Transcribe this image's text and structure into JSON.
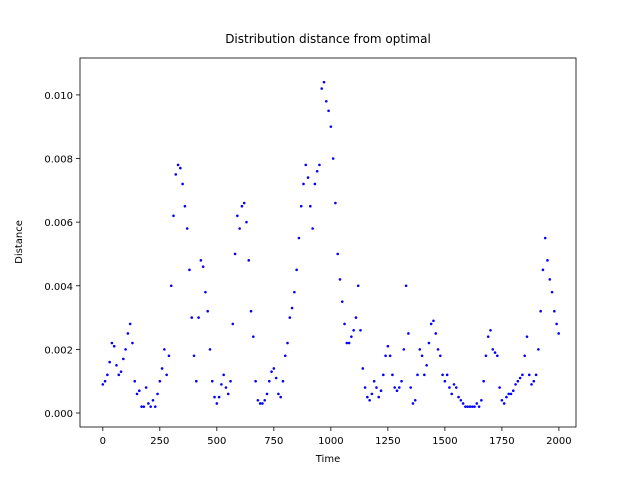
{
  "chart_data": {
    "type": "scatter",
    "title": "Distribution distance from optimal",
    "x_label": "Time",
    "y_label": "Distance",
    "color": "#0000ff",
    "x": [
      0,
      10,
      20,
      30,
      40,
      50,
      60,
      70,
      80,
      90,
      100,
      110,
      120,
      130,
      140,
      150,
      160,
      170,
      180,
      190,
      200,
      210,
      220,
      230,
      240,
      250,
      260,
      270,
      280,
      290,
      300,
      310,
      320,
      330,
      340,
      350,
      360,
      370,
      380,
      390,
      400,
      410,
      420,
      430,
      440,
      450,
      460,
      470,
      480,
      490,
      500,
      510,
      520,
      530,
      540,
      550,
      560,
      570,
      580,
      590,
      600,
      610,
      620,
      630,
      640,
      650,
      660,
      670,
      680,
      690,
      700,
      710,
      720,
      730,
      740,
      750,
      760,
      770,
      780,
      790,
      800,
      810,
      820,
      830,
      840,
      850,
      860,
      870,
      880,
      890,
      900,
      910,
      920,
      930,
      940,
      950,
      960,
      970,
      980,
      990,
      1000,
      1010,
      1020,
      1030,
      1040,
      1050,
      1060,
      1070,
      1080,
      1090,
      1100,
      1110,
      1120,
      1130,
      1140,
      1150,
      1160,
      1170,
      1180,
      1190,
      1200,
      1210,
      1220,
      1230,
      1240,
      1250,
      1260,
      1270,
      1280,
      1290,
      1300,
      1310,
      1320,
      1330,
      1340,
      1350,
      1360,
      1370,
      1380,
      1390,
      1400,
      1410,
      1420,
      1430,
      1440,
      1450,
      1460,
      1470,
      1480,
      1490,
      1500,
      1510,
      1520,
      1530,
      1540,
      1550,
      1560,
      1570,
      1580,
      1590,
      1600,
      1610,
      1620,
      1630,
      1640,
      1650,
      1660,
      1670,
      1680,
      1690,
      1700,
      1710,
      1720,
      1730,
      1740,
      1750,
      1760,
      1770,
      1780,
      1790,
      1800,
      1810,
      1820,
      1830,
      1840,
      1850,
      1860,
      1870,
      1880,
      1890,
      1900,
      1910,
      1920,
      1930,
      1940,
      1950,
      1960,
      1970,
      1980,
      1990,
      1999
    ],
    "values": [
      0.0009,
      0.001,
      0.0012,
      0.0016,
      0.0022,
      0.0021,
      0.0015,
      0.0012,
      0.0013,
      0.0017,
      0.002,
      0.0025,
      0.0028,
      0.0022,
      0.001,
      0.0006,
      0.0007,
      0.0002,
      0.0002,
      0.0008,
      0.0003,
      0.0002,
      0.0004,
      0.0002,
      0.0006,
      0.001,
      0.0014,
      0.002,
      0.0012,
      0.0018,
      0.004,
      0.0062,
      0.0075,
      0.0078,
      0.0077,
      0.0072,
      0.0065,
      0.0058,
      0.0045,
      0.003,
      0.0018,
      0.001,
      0.003,
      0.0048,
      0.0046,
      0.0038,
      0.0032,
      0.002,
      0.001,
      0.0005,
      0.0003,
      0.0005,
      0.0009,
      0.0012,
      0.0008,
      0.0006,
      0.001,
      0.0028,
      0.005,
      0.0062,
      0.0058,
      0.0065,
      0.0066,
      0.006,
      0.0048,
      0.0032,
      0.0024,
      0.001,
      0.0004,
      0.0003,
      0.0003,
      0.0004,
      0.0006,
      0.001,
      0.0013,
      0.0014,
      0.0011,
      0.0006,
      0.0005,
      0.001,
      0.0018,
      0.0022,
      0.003,
      0.0033,
      0.0038,
      0.0045,
      0.0055,
      0.0065,
      0.0072,
      0.0078,
      0.0074,
      0.0065,
      0.0058,
      0.0072,
      0.0076,
      0.0078,
      0.0102,
      0.0104,
      0.0098,
      0.0095,
      0.009,
      0.008,
      0.0066,
      0.005,
      0.0042,
      0.0035,
      0.0028,
      0.0022,
      0.0022,
      0.0024,
      0.0026,
      0.003,
      0.004,
      0.0026,
      0.0014,
      0.0008,
      0.0005,
      0.0004,
      0.0006,
      0.001,
      0.0008,
      0.0005,
      0.0007,
      0.0012,
      0.0018,
      0.0021,
      0.0018,
      0.0012,
      0.0008,
      0.0007,
      0.0008,
      0.001,
      0.002,
      0.004,
      0.0025,
      0.0008,
      0.0003,
      0.0004,
      0.0012,
      0.002,
      0.0018,
      0.0012,
      0.0015,
      0.0022,
      0.0028,
      0.0029,
      0.0025,
      0.002,
      0.0018,
      0.0012,
      0.001,
      0.0012,
      0.0008,
      0.0006,
      0.0009,
      0.0008,
      0.0005,
      0.0004,
      0.0003,
      0.0002,
      0.0002,
      0.0002,
      0.0002,
      0.0002,
      0.0003,
      0.0002,
      0.0004,
      0.001,
      0.0018,
      0.0024,
      0.0026,
      0.002,
      0.0019,
      0.0018,
      0.0008,
      0.0004,
      0.0003,
      0.0005,
      0.0006,
      0.0006,
      0.0007,
      0.0009,
      0.001,
      0.0011,
      0.0012,
      0.0018,
      0.0024,
      0.0012,
      0.0009,
      0.001,
      0.0012,
      0.002,
      0.0032,
      0.0045,
      0.0055,
      0.0048,
      0.0042,
      0.0038,
      0.0032,
      0.0028,
      0.0025
    ],
    "xlim": [
      -100,
      2075
    ],
    "xticks": [
      0,
      250,
      500,
      750,
      1000,
      1250,
      1500,
      1750,
      2000
    ],
    "ylim": [
      -0.00044,
      0.01116
    ],
    "yticks": [
      {
        "value": 0,
        "label": "0.000"
      },
      {
        "value": 0.002,
        "label": "0.002"
      },
      {
        "value": 0.004,
        "label": "0.004"
      },
      {
        "value": 0.006,
        "label": "0.006"
      },
      {
        "value": 0.008,
        "label": "0.008"
      },
      {
        "value": 0.01,
        "label": "0.010"
      }
    ],
    "grid": false
  }
}
